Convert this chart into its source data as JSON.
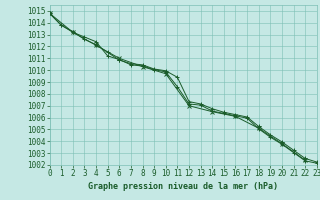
{
  "title": "Graphe pression niveau de la mer (hPa)",
  "background_color": "#c5e8e4",
  "grid_color": "#7dbfb5",
  "line_color": "#1a5c2a",
  "xlim": [
    0,
    23
  ],
  "ylim": [
    1002,
    1015.5
  ],
  "xticks": [
    0,
    1,
    2,
    3,
    4,
    5,
    6,
    7,
    8,
    9,
    10,
    11,
    12,
    13,
    14,
    15,
    16,
    17,
    18,
    19,
    20,
    21,
    22,
    23
  ],
  "yticks": [
    1002,
    1003,
    1004,
    1005,
    1006,
    1007,
    1008,
    1009,
    1010,
    1011,
    1012,
    1013,
    1014,
    1015
  ],
  "series1_x": [
    0,
    1,
    2,
    3,
    4,
    5,
    6,
    7,
    8,
    9,
    10,
    11,
    12,
    13,
    14,
    15,
    16,
    17,
    18,
    19,
    20,
    21,
    22,
    23
  ],
  "series1_y": [
    1014.8,
    1013.8,
    1013.2,
    1012.8,
    1012.4,
    1011.2,
    1010.9,
    1010.45,
    1010.35,
    1010.05,
    1009.85,
    1008.6,
    1007.15,
    1007.05,
    1006.55,
    1006.35,
    1006.15,
    1005.95,
    1005.05,
    1004.35,
    1003.75,
    1003.05,
    1002.35,
    1002.15
  ],
  "series2_x": [
    0,
    1,
    2,
    3,
    4,
    5,
    6,
    7,
    8,
    9,
    10,
    11,
    12,
    13,
    14,
    15,
    16,
    17,
    18,
    19,
    20,
    21,
    22,
    23
  ],
  "series2_y": [
    1014.8,
    1013.8,
    1013.25,
    1012.6,
    1012.15,
    1011.5,
    1010.85,
    1010.55,
    1010.45,
    1010.1,
    1009.95,
    1009.4,
    1007.35,
    1007.15,
    1006.75,
    1006.45,
    1006.25,
    1006.05,
    1005.25,
    1004.55,
    1003.95,
    1003.25,
    1002.55,
    1002.25
  ],
  "series3_x": [
    0,
    2,
    4,
    6,
    8,
    10,
    12,
    14,
    16,
    18,
    20,
    22
  ],
  "series3_y": [
    1014.8,
    1013.2,
    1012.1,
    1011.0,
    1010.3,
    1009.7,
    1007.0,
    1006.5,
    1006.1,
    1005.1,
    1003.8,
    1002.4
  ],
  "tick_fontsize": 5.5,
  "xlabel_fontsize": 6.0
}
